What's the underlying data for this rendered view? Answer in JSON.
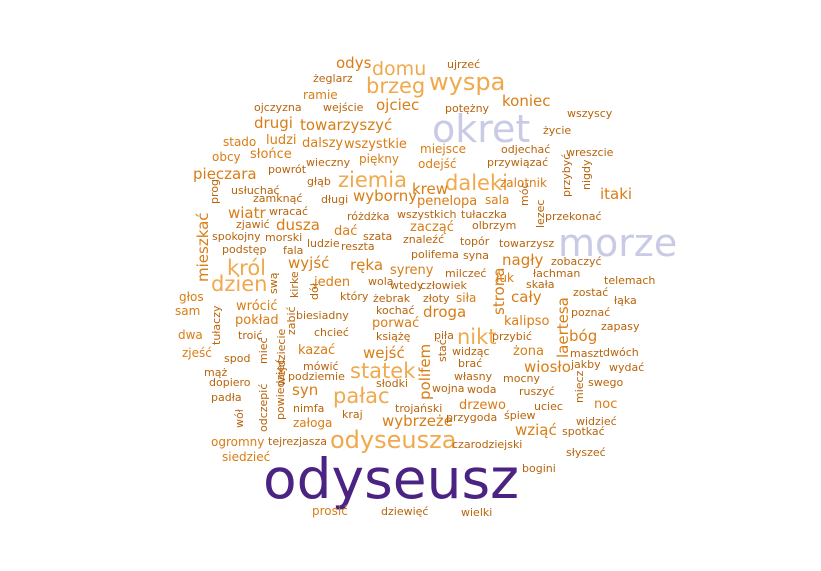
{
  "colors": {
    "dark_purple": "#4b2383",
    "lavender": "#c9cbe6",
    "light_orange": "#f0a94c",
    "orange": "#d97d16",
    "dark_orange": "#b8640c"
  },
  "words": [
    {
      "text": "odyseusz",
      "color": "dark_purple",
      "rotated": false
    },
    {
      "text": "okret",
      "color": "lavender",
      "rotated": false
    },
    {
      "text": "morze",
      "color": "lavender",
      "rotated": false
    },
    {
      "text": "wyspa",
      "color": "light_orange",
      "rotated": false
    },
    {
      "text": "odyseusza",
      "color": "light_orange",
      "rotated": false
    },
    {
      "text": "brzeg",
      "color": "light_orange",
      "rotated": false
    },
    {
      "text": "domu",
      "color": "light_orange",
      "rotated": false
    },
    {
      "text": "ziemia",
      "color": "light_orange",
      "rotated": false
    },
    {
      "text": "daleki",
      "color": "light_orange",
      "rotated": false
    },
    {
      "text": "król",
      "color": "light_orange",
      "rotated": false
    },
    {
      "text": "dzien",
      "color": "light_orange",
      "rotated": false
    },
    {
      "text": "pałac",
      "color": "light_orange",
      "rotated": false
    },
    {
      "text": "statek",
      "color": "light_orange",
      "rotated": false
    },
    {
      "text": "nikt",
      "color": "light_orange",
      "rotated": false
    },
    {
      "text": "odys",
      "color": "orange",
      "rotated": false
    },
    {
      "text": "ojciec",
      "color": "orange",
      "rotated": false
    },
    {
      "text": "koniec",
      "color": "orange",
      "rotated": false
    },
    {
      "text": "towarzyszyć",
      "color": "orange",
      "rotated": false
    },
    {
      "text": "drugi",
      "color": "orange",
      "rotated": false
    },
    {
      "text": "pieczara",
      "color": "orange",
      "rotated": false
    },
    {
      "text": "itaki",
      "color": "orange",
      "rotated": false
    },
    {
      "text": "wyborny",
      "color": "orange",
      "rotated": false
    },
    {
      "text": "krew",
      "color": "orange",
      "rotated": false
    },
    {
      "text": "wiatr",
      "color": "orange",
      "rotated": false
    },
    {
      "text": "dusza",
      "color": "orange",
      "rotated": false
    },
    {
      "text": "wyjść",
      "color": "orange",
      "rotated": false
    },
    {
      "text": "ręka",
      "color": "orange",
      "rotated": false
    },
    {
      "text": "nagły",
      "color": "orange",
      "rotated": false
    },
    {
      "text": "cały",
      "color": "orange",
      "rotated": false
    },
    {
      "text": "bóg",
      "color": "orange",
      "rotated": false
    },
    {
      "text": "droga",
      "color": "orange",
      "rotated": false
    },
    {
      "text": "wejść",
      "color": "orange",
      "rotated": false
    },
    {
      "text": "syn",
      "color": "orange",
      "rotated": false
    },
    {
      "text": "wiosło",
      "color": "orange",
      "rotated": false
    },
    {
      "text": "wybrzeże",
      "color": "orange",
      "rotated": false
    },
    {
      "text": "wziąć",
      "color": "orange",
      "rotated": false
    },
    {
      "text": "kalipso",
      "color": "orange",
      "rotated": false
    },
    {
      "text": "żona",
      "color": "orange",
      "rotated": false
    },
    {
      "text": "drzewo",
      "color": "orange",
      "rotated": false
    },
    {
      "text": "noc",
      "color": "orange",
      "rotated": false
    },
    {
      "text": "syreny",
      "color": "orange",
      "rotated": false
    },
    {
      "text": "jeden",
      "color": "orange",
      "rotated": false
    },
    {
      "text": "porwać",
      "color": "orange",
      "rotated": false
    },
    {
      "text": "zacząć",
      "color": "orange",
      "rotated": false
    },
    {
      "text": "penelopa",
      "color": "orange",
      "rotated": false
    },
    {
      "text": "pokład",
      "color": "orange",
      "rotated": false
    },
    {
      "text": "wrócić",
      "color": "orange",
      "rotated": false
    },
    {
      "text": "kazać",
      "color": "orange",
      "rotated": false
    },
    {
      "text": "dalszy",
      "color": "orange",
      "rotated": false
    },
    {
      "text": "wszystkie",
      "color": "orange",
      "rotated": false
    },
    {
      "text": "ludzi",
      "color": "orange",
      "rotated": false
    },
    {
      "text": "słońce",
      "color": "orange",
      "rotated": false
    },
    {
      "text": "dać",
      "color": "orange",
      "rotated": false
    },
    {
      "text": "sala",
      "color": "orange",
      "rotated": false
    },
    {
      "text": "zalotnik",
      "color": "orange",
      "rotated": false
    },
    {
      "text": "odejść",
      "color": "orange",
      "rotated": false
    },
    {
      "text": "miejsce",
      "color": "orange",
      "rotated": false
    },
    {
      "text": "piękny",
      "color": "orange",
      "rotated": false
    },
    {
      "text": "ramie",
      "color": "orange",
      "rotated": false
    },
    {
      "text": "stado",
      "color": "orange",
      "rotated": false
    },
    {
      "text": "obcy",
      "color": "orange",
      "rotated": false
    },
    {
      "text": "siła",
      "color": "orange",
      "rotated": false
    },
    {
      "text": "łuk",
      "color": "orange",
      "rotated": false
    },
    {
      "text": "załoga",
      "color": "orange",
      "rotated": false
    },
    {
      "text": "prosić",
      "color": "orange",
      "rotated": false
    },
    {
      "text": "ogromny",
      "color": "orange",
      "rotated": false
    },
    {
      "text": "siedzieć",
      "color": "orange",
      "rotated": false
    },
    {
      "text": "zjeść",
      "color": "orange",
      "rotated": false
    },
    {
      "text": "dwa",
      "color": "orange",
      "rotated": false
    },
    {
      "text": "sam",
      "color": "orange",
      "rotated": false
    },
    {
      "text": "głos",
      "color": "orange",
      "rotated": false
    },
    {
      "text": "potężny",
      "color": "dark_orange",
      "rotated": false
    },
    {
      "text": "ujrzeć",
      "color": "dark_orange",
      "rotated": false
    },
    {
      "text": "żeglarz",
      "color": "dark_orange",
      "rotated": false
    },
    {
      "text": "ojczyzna",
      "color": "dark_orange",
      "rotated": false
    },
    {
      "text": "wejście",
      "color": "dark_orange",
      "rotated": false
    },
    {
      "text": "wszyscy",
      "color": "dark_orange",
      "rotated": false
    },
    {
      "text": "życie",
      "color": "dark_orange",
      "rotated": false
    },
    {
      "text": "odjechać",
      "color": "dark_orange",
      "rotated": false
    },
    {
      "text": "wreszcie",
      "color": "dark_orange",
      "rotated": false
    },
    {
      "text": "przywiązać",
      "color": "dark_orange",
      "rotated": false
    },
    {
      "text": "wieczny",
      "color": "dark_orange",
      "rotated": false
    },
    {
      "text": "powrót",
      "color": "dark_orange",
      "rotated": false
    },
    {
      "text": "usłuchać",
      "color": "dark_orange",
      "rotated": false
    },
    {
      "text": "głąb",
      "color": "dark_orange",
      "rotated": false
    },
    {
      "text": "zamknąć",
      "color": "dark_orange",
      "rotated": false
    },
    {
      "text": "długi",
      "color": "dark_orange",
      "rotated": false
    },
    {
      "text": "wracać",
      "color": "dark_orange",
      "rotated": false
    },
    {
      "text": "różdżka",
      "color": "dark_orange",
      "rotated": false
    },
    {
      "text": "wszystkich",
      "color": "dark_orange",
      "rotated": false
    },
    {
      "text": "tułaczka",
      "color": "dark_orange",
      "rotated": false
    },
    {
      "text": "przekonać",
      "color": "dark_orange",
      "rotated": false
    },
    {
      "text": "olbrzym",
      "color": "dark_orange",
      "rotated": false
    },
    {
      "text": "zjawić",
      "color": "dark_orange",
      "rotated": false
    },
    {
      "text": "spokojny",
      "color": "dark_orange",
      "rotated": false
    },
    {
      "text": "morski",
      "color": "dark_orange",
      "rotated": false
    },
    {
      "text": "szata",
      "color": "dark_orange",
      "rotated": false
    },
    {
      "text": "znaleźć",
      "color": "dark_orange",
      "rotated": false
    },
    {
      "text": "topór",
      "color": "dark_orange",
      "rotated": false
    },
    {
      "text": "towarzysz",
      "color": "dark_orange",
      "rotated": false
    },
    {
      "text": "podstęp",
      "color": "dark_orange",
      "rotated": false
    },
    {
      "text": "fala",
      "color": "dark_orange",
      "rotated": false
    },
    {
      "text": "ludzie",
      "color": "dark_orange",
      "rotated": false
    },
    {
      "text": "reszta",
      "color": "dark_orange",
      "rotated": false
    },
    {
      "text": "polifema",
      "color": "dark_orange",
      "rotated": false
    },
    {
      "text": "syna",
      "color": "dark_orange",
      "rotated": false
    },
    {
      "text": "zobaczyć",
      "color": "dark_orange",
      "rotated": false
    },
    {
      "text": "łachman",
      "color": "dark_orange",
      "rotated": false
    },
    {
      "text": "telemach",
      "color": "dark_orange",
      "rotated": false
    },
    {
      "text": "milczeć",
      "color": "dark_orange",
      "rotated": false
    },
    {
      "text": "człowiek",
      "color": "dark_orange",
      "rotated": false
    },
    {
      "text": "skała",
      "color": "dark_orange",
      "rotated": false
    },
    {
      "text": "zostać",
      "color": "dark_orange",
      "rotated": false
    },
    {
      "text": "łąka",
      "color": "dark_orange",
      "rotated": false
    },
    {
      "text": "wola",
      "color": "dark_orange",
      "rotated": false
    },
    {
      "text": "wtedy",
      "color": "dark_orange",
      "rotated": false
    },
    {
      "text": "który",
      "color": "dark_orange",
      "rotated": false
    },
    {
      "text": "żebrak",
      "color": "dark_orange",
      "rotated": false
    },
    {
      "text": "złoty",
      "color": "dark_orange",
      "rotated": false
    },
    {
      "text": "poznać",
      "color": "dark_orange",
      "rotated": false
    },
    {
      "text": "zapasy",
      "color": "dark_orange",
      "rotated": false
    },
    {
      "text": "biesiadny",
      "color": "dark_orange",
      "rotated": false
    },
    {
      "text": "kochać",
      "color": "dark_orange",
      "rotated": false
    },
    {
      "text": "chcieć",
      "color": "dark_orange",
      "rotated": false
    },
    {
      "text": "książę",
      "color": "dark_orange",
      "rotated": false
    },
    {
      "text": "piła",
      "color": "dark_orange",
      "rotated": false
    },
    {
      "text": "przybić",
      "color": "dark_orange",
      "rotated": false
    },
    {
      "text": "maszt",
      "color": "dark_orange",
      "rotated": false
    },
    {
      "text": "dwóch",
      "color": "dark_orange",
      "rotated": false
    },
    {
      "text": "troić",
      "color": "dark_orange",
      "rotated": false
    },
    {
      "text": "widząc",
      "color": "dark_orange",
      "rotated": false
    },
    {
      "text": "brać",
      "color": "dark_orange",
      "rotated": false
    },
    {
      "text": "jakby",
      "color": "dark_orange",
      "rotated": false
    },
    {
      "text": "wydać",
      "color": "dark_orange",
      "rotated": false
    },
    {
      "text": "spod",
      "color": "dark_orange",
      "rotated": false
    },
    {
      "text": "mąż",
      "color": "dark_orange",
      "rotated": false
    },
    {
      "text": "mówić",
      "color": "dark_orange",
      "rotated": false
    },
    {
      "text": "podziemie",
      "color": "dark_orange",
      "rotated": false
    },
    {
      "text": "własny",
      "color": "dark_orange",
      "rotated": false
    },
    {
      "text": "mocny",
      "color": "dark_orange",
      "rotated": false
    },
    {
      "text": "swego",
      "color": "dark_orange",
      "rotated": false
    },
    {
      "text": "dopiero",
      "color": "dark_orange",
      "rotated": false
    },
    {
      "text": "słodki",
      "color": "dark_orange",
      "rotated": false
    },
    {
      "text": "wojna",
      "color": "dark_orange",
      "rotated": false
    },
    {
      "text": "woda",
      "color": "dark_orange",
      "rotated": false
    },
    {
      "text": "ruszyć",
      "color": "dark_orange",
      "rotated": false
    },
    {
      "text": "padła",
      "color": "dark_orange",
      "rotated": false
    },
    {
      "text": "nimfa",
      "color": "dark_orange",
      "rotated": false
    },
    {
      "text": "trojański",
      "color": "dark_orange",
      "rotated": false
    },
    {
      "text": "uciec",
      "color": "dark_orange",
      "rotated": false
    },
    {
      "text": "kraj",
      "color": "dark_orange",
      "rotated": false
    },
    {
      "text": "przygoda",
      "color": "dark_orange",
      "rotated": false
    },
    {
      "text": "śpiew",
      "color": "dark_orange",
      "rotated": false
    },
    {
      "text": "widzieć",
      "color": "dark_orange",
      "rotated": false
    },
    {
      "text": "spotkać",
      "color": "dark_orange",
      "rotated": false
    },
    {
      "text": "tejrezjasza",
      "color": "dark_orange",
      "rotated": false
    },
    {
      "text": "czarodziejski",
      "color": "dark_orange",
      "rotated": false
    },
    {
      "text": "słyszeć",
      "color": "dark_orange",
      "rotated": false
    },
    {
      "text": "bogini",
      "color": "dark_orange",
      "rotated": false
    },
    {
      "text": "dziewięć",
      "color": "dark_orange",
      "rotated": false
    },
    {
      "text": "wielki",
      "color": "dark_orange",
      "rotated": false
    },
    {
      "text": "mieszkać",
      "color": "orange",
      "rotated": true
    },
    {
      "text": "prog",
      "color": "dark_orange",
      "rotated": true
    },
    {
      "text": "kirke",
      "color": "dark_orange",
      "rotated": true
    },
    {
      "text": "swą",
      "color": "dark_orange",
      "rotated": true
    },
    {
      "text": "zabić",
      "color": "dark_orange",
      "rotated": true
    },
    {
      "text": "dół",
      "color": "dark_orange",
      "rotated": true
    },
    {
      "text": "tułaczy",
      "color": "dark_orange",
      "rotated": true
    },
    {
      "text": "mieć",
      "color": "dark_orange",
      "rotated": true
    },
    {
      "text": "wejdziecie",
      "color": "dark_orange",
      "rotated": true
    },
    {
      "text": "powiedzieć",
      "color": "dark_orange",
      "rotated": true
    },
    {
      "text": "odczepić",
      "color": "dark_orange",
      "rotated": true
    },
    {
      "text": "wół",
      "color": "dark_orange",
      "rotated": true
    },
    {
      "text": "polifem",
      "color": "orange",
      "rotated": true
    },
    {
      "text": "stać",
      "color": "dark_orange",
      "rotated": true
    },
    {
      "text": "strona",
      "color": "orange",
      "rotated": true
    },
    {
      "text": "laertesa",
      "color": "orange",
      "rotated": true
    },
    {
      "text": "móc",
      "color": "dark_orange",
      "rotated": true
    },
    {
      "text": "lezec",
      "color": "dark_orange",
      "rotated": true
    },
    {
      "text": "przybyć",
      "color": "dark_orange",
      "rotated": true
    },
    {
      "text": "nigdy",
      "color": "dark_orange",
      "rotated": true
    },
    {
      "text": "miecz",
      "color": "dark_orange",
      "rotated": true
    }
  ]
}
